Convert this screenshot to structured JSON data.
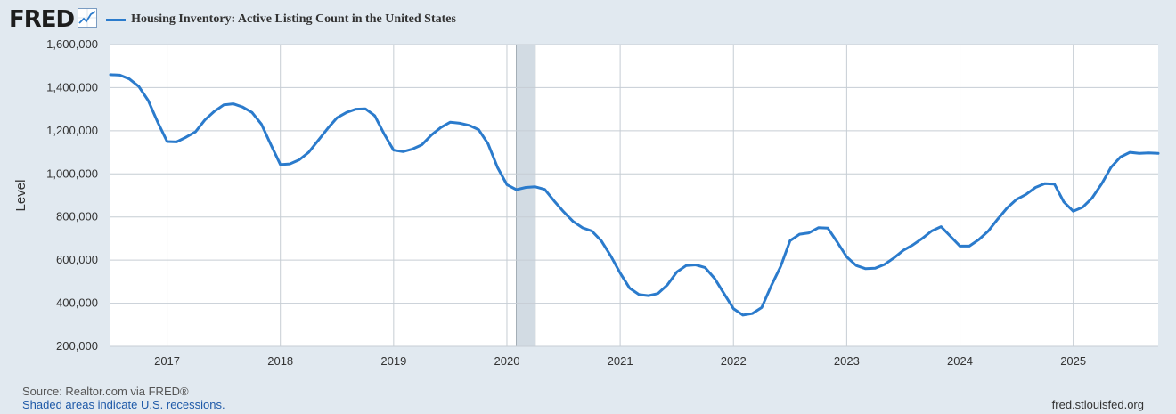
{
  "header": {
    "logo_text": "FRED",
    "logo_icon": "chart-line-icon",
    "legend_label": "Housing Inventory: Active Listing Count in the United States"
  },
  "colors": {
    "series": "#2b7bcc",
    "recession": "#d2dbe3",
    "grid": "#c6cdd4",
    "plot_bg": "#ffffff",
    "page_bg": "#e1e9f0"
  },
  "footer": {
    "source": "Source: Realtor.com via FRED®",
    "recession_note": "Shaded areas indicate U.S. recessions.",
    "site": "fred.stlouisfed.org"
  },
  "chart_data": {
    "type": "line",
    "title": "",
    "xlabel": "",
    "ylabel": "Level",
    "xlim": [
      "2016-07",
      "2025-10"
    ],
    "ylim": [
      200000,
      1600000
    ],
    "yticks": [
      200000,
      400000,
      600000,
      800000,
      1000000,
      1200000,
      1400000,
      1600000
    ],
    "ytick_labels": [
      "200,000",
      "400,000",
      "600,000",
      "800,000",
      "1,000,000",
      "1,200,000",
      "1,400,000",
      "1,600,000"
    ],
    "xticks": [
      "2017",
      "2018",
      "2019",
      "2020",
      "2021",
      "2022",
      "2023",
      "2024",
      "2025"
    ],
    "grid": true,
    "recessions": [
      {
        "start": "2020-02",
        "end": "2020-04"
      }
    ],
    "series": [
      {
        "name": "Housing Inventory: Active Listing Count in the United States",
        "x": [
          "2016-07",
          "2016-08",
          "2016-09",
          "2016-10",
          "2016-11",
          "2016-12",
          "2017-01",
          "2017-02",
          "2017-03",
          "2017-04",
          "2017-05",
          "2017-06",
          "2017-07",
          "2017-08",
          "2017-09",
          "2017-10",
          "2017-11",
          "2017-12",
          "2018-01",
          "2018-02",
          "2018-03",
          "2018-04",
          "2018-05",
          "2018-06",
          "2018-07",
          "2018-08",
          "2018-09",
          "2018-10",
          "2018-11",
          "2018-12",
          "2019-01",
          "2019-02",
          "2019-03",
          "2019-04",
          "2019-05",
          "2019-06",
          "2019-07",
          "2019-08",
          "2019-09",
          "2019-10",
          "2019-11",
          "2019-12",
          "2020-01",
          "2020-02",
          "2020-03",
          "2020-04",
          "2020-05",
          "2020-06",
          "2020-07",
          "2020-08",
          "2020-09",
          "2020-10",
          "2020-11",
          "2020-12",
          "2021-01",
          "2021-02",
          "2021-03",
          "2021-04",
          "2021-05",
          "2021-06",
          "2021-07",
          "2021-08",
          "2021-09",
          "2021-10",
          "2021-11",
          "2021-12",
          "2022-01",
          "2022-02",
          "2022-03",
          "2022-04",
          "2022-05",
          "2022-06",
          "2022-07",
          "2022-08",
          "2022-09",
          "2022-10",
          "2022-11",
          "2022-12",
          "2023-01",
          "2023-02",
          "2023-03",
          "2023-04",
          "2023-05",
          "2023-06",
          "2023-07",
          "2023-08",
          "2023-09",
          "2023-10",
          "2023-11",
          "2023-12",
          "2024-01",
          "2024-02",
          "2024-03",
          "2024-04",
          "2024-05",
          "2024-06",
          "2024-07",
          "2024-08",
          "2024-09",
          "2024-10",
          "2024-11",
          "2024-12",
          "2025-01",
          "2025-02",
          "2025-03",
          "2025-04",
          "2025-05",
          "2025-06",
          "2025-07",
          "2025-08",
          "2025-09",
          "2025-10"
        ],
        "values": [
          1460000,
          1458000,
          1440000,
          1405000,
          1340000,
          1240000,
          1150000,
          1148000,
          1170000,
          1195000,
          1250000,
          1290000,
          1320000,
          1325000,
          1310000,
          1285000,
          1230000,
          1135000,
          1043000,
          1046000,
          1065000,
          1100000,
          1155000,
          1210000,
          1260000,
          1285000,
          1300000,
          1302000,
          1270000,
          1185000,
          1110000,
          1103000,
          1115000,
          1135000,
          1180000,
          1215000,
          1240000,
          1235000,
          1225000,
          1205000,
          1140000,
          1030000,
          950000,
          927000,
          937000,
          940000,
          928000,
          875000,
          825000,
          780000,
          750000,
          735000,
          690000,
          620000,
          540000,
          470000,
          440000,
          435000,
          445000,
          485000,
          545000,
          575000,
          578000,
          565000,
          515000,
          445000,
          375000,
          345000,
          352000,
          380000,
          480000,
          570000,
          690000,
          720000,
          726000,
          750000,
          748000,
          683000,
          615000,
          575000,
          560000,
          562000,
          580000,
          610000,
          645000,
          670000,
          700000,
          735000,
          755000,
          710000,
          665000,
          665000,
          695000,
          735000,
          790000,
          842000,
          882000,
          905000,
          937000,
          955000,
          953000,
          870000,
          827000,
          845000,
          888000,
          953000,
          1030000,
          1078000,
          1100000,
          1095000,
          1097000,
          1095000
        ]
      }
    ]
  }
}
